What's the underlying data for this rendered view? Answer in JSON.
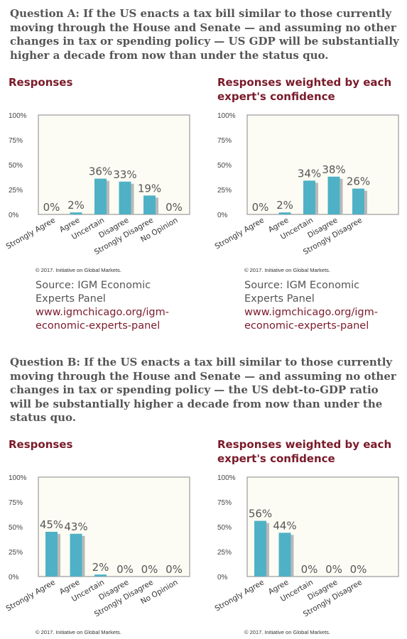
{
  "questions": [
    {
      "text": "Question A: If the US enacts a tax bill similar to those currently moving through the House and Senate — and assuming no other changes in tax or spending policy — US GDP will be substantially higher a decade from now than under the status quo.",
      "panels": [
        {
          "title": "Responses",
          "footer": "© 2017. Initiative on Global Markets."
        },
        {
          "title": "Responses weighted by each expert's confidence",
          "footer": "© 2017. Initiative on Global Markets."
        }
      ],
      "sources": [
        {
          "line1": "Source: IGM Economic",
          "line2": "Experts Panel",
          "url1": "www.igmchicago.org/igm-",
          "url2": "economic-experts-panel"
        },
        {
          "line1": "Source: IGM Economic",
          "line2": "Experts Panel",
          "url1": "www.igmchicago.org/igm-",
          "url2": "economic-experts-panel"
        }
      ]
    },
    {
      "text": "Question B: If the US enacts a tax bill similar to those currently moving through the House and Senate — and assuming no other changes in tax or spending policy — the US debt-to-GDP ratio will be substantially higher a decade from now than under the status quo.",
      "panels": [
        {
          "title": "Responses",
          "footer": "© 2017. Initiative on Global Markets."
        },
        {
          "title": "Responses weighted by each expert's confidence",
          "footer": "© 2017. Initiative on Global Markets."
        }
      ]
    }
  ],
  "colors": {
    "bar": "#4fb1c6",
    "bar_shadow": "#b9b9b9",
    "plot_bg": "#fdfcf4",
    "title": "#7a1a2a"
  },
  "chart_data": [
    {
      "type": "bar",
      "categories": [
        "Strongly Agree",
        "Agree",
        "Uncertain",
        "Disagree",
        "Strongly Disagree",
        "No Opinion"
      ],
      "values": [
        0,
        2,
        36,
        33,
        19,
        0
      ],
      "labels": [
        "0%",
        "2%",
        "36%",
        "33%",
        "19%",
        "0%"
      ],
      "yticks": [
        "0%",
        "25%",
        "50%",
        "75%",
        "100%"
      ],
      "ylim": [
        0,
        100
      ]
    },
    {
      "type": "bar",
      "categories": [
        "Strongly Agree",
        "Agree",
        "Uncertain",
        "Disagree",
        "Strongly Disagree"
      ],
      "values": [
        0,
        2,
        34,
        38,
        26
      ],
      "labels": [
        "0%",
        "2%",
        "34%",
        "38%",
        "26%"
      ],
      "yticks": [
        "0%",
        "25%",
        "50%",
        "75%",
        "100%"
      ],
      "ylim": [
        0,
        100
      ]
    },
    {
      "type": "bar",
      "categories": [
        "Strongly Agree",
        "Agree",
        "Uncertain",
        "Disagree",
        "Strongly Disagree",
        "No Opinion"
      ],
      "values": [
        45,
        43,
        2,
        0,
        0,
        0
      ],
      "labels": [
        "45%",
        "43%",
        "2%",
        "0%",
        "0%",
        "0%"
      ],
      "yticks": [
        "0%",
        "25%",
        "50%",
        "75%",
        "100%"
      ],
      "ylim": [
        0,
        100
      ]
    },
    {
      "type": "bar",
      "categories": [
        "Strongly Agree",
        "Agree",
        "Uncertain",
        "Disagree",
        "Strongly Disagree"
      ],
      "values": [
        56,
        44,
        0,
        0,
        0
      ],
      "labels": [
        "56%",
        "44%",
        "0%",
        "0%",
        "0%"
      ],
      "yticks": [
        "0%",
        "25%",
        "50%",
        "75%",
        "100%"
      ],
      "ylim": [
        0,
        100
      ]
    }
  ]
}
